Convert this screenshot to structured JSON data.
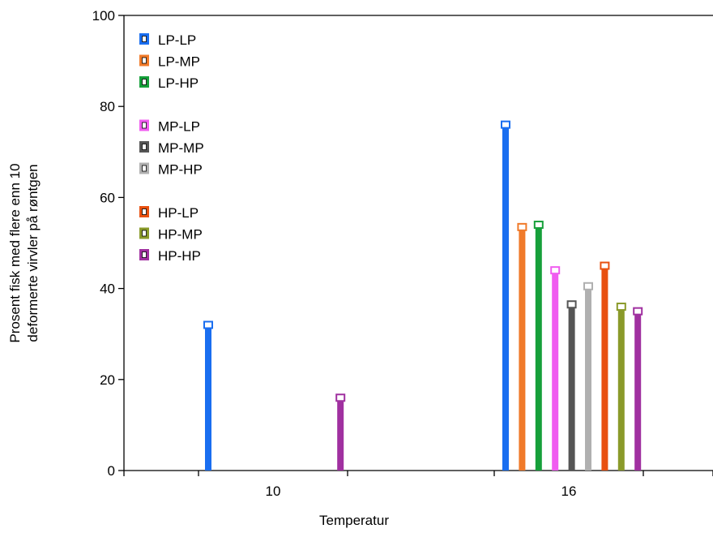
{
  "chart_data": {
    "type": "bar",
    "title": "",
    "xlabel": "Temperatur",
    "ylabel_lines": [
      "Prosent fisk med flere enn 10",
      "deformerte virvler på røntgen"
    ],
    "ylim": [
      0,
      100
    ],
    "yticks": [
      0,
      20,
      40,
      60,
      80,
      100
    ],
    "categories": [
      "10",
      "16"
    ],
    "legend_position": "top-left",
    "grid": false,
    "series": [
      {
        "name": "LP-LP",
        "color": "#1a6ef0",
        "values": [
          32,
          76
        ],
        "legend_group": 0
      },
      {
        "name": "LP-MP",
        "color": "#f07a2a",
        "values": [
          null,
          53.5
        ],
        "legend_group": 0
      },
      {
        "name": "LP-HP",
        "color": "#16a03a",
        "values": [
          null,
          54
        ],
        "legend_group": 0
      },
      {
        "name": "MP-LP",
        "color": "#f05cf0",
        "values": [
          null,
          44
        ],
        "legend_group": 1
      },
      {
        "name": "MP-MP",
        "color": "#555555",
        "values": [
          null,
          36.5
        ],
        "legend_group": 1
      },
      {
        "name": "MP-HP",
        "color": "#b0b0b0",
        "values": [
          null,
          40.5
        ],
        "legend_group": 1
      },
      {
        "name": "HP-LP",
        "color": "#e85010",
        "values": [
          null,
          45
        ],
        "legend_group": 2
      },
      {
        "name": "HP-MP",
        "color": "#8a9a2a",
        "values": [
          null,
          36
        ],
        "legend_group": 2
      },
      {
        "name": "HP-HP",
        "color": "#a030a0",
        "values": [
          16,
          35
        ],
        "legend_group": 2
      }
    ]
  }
}
